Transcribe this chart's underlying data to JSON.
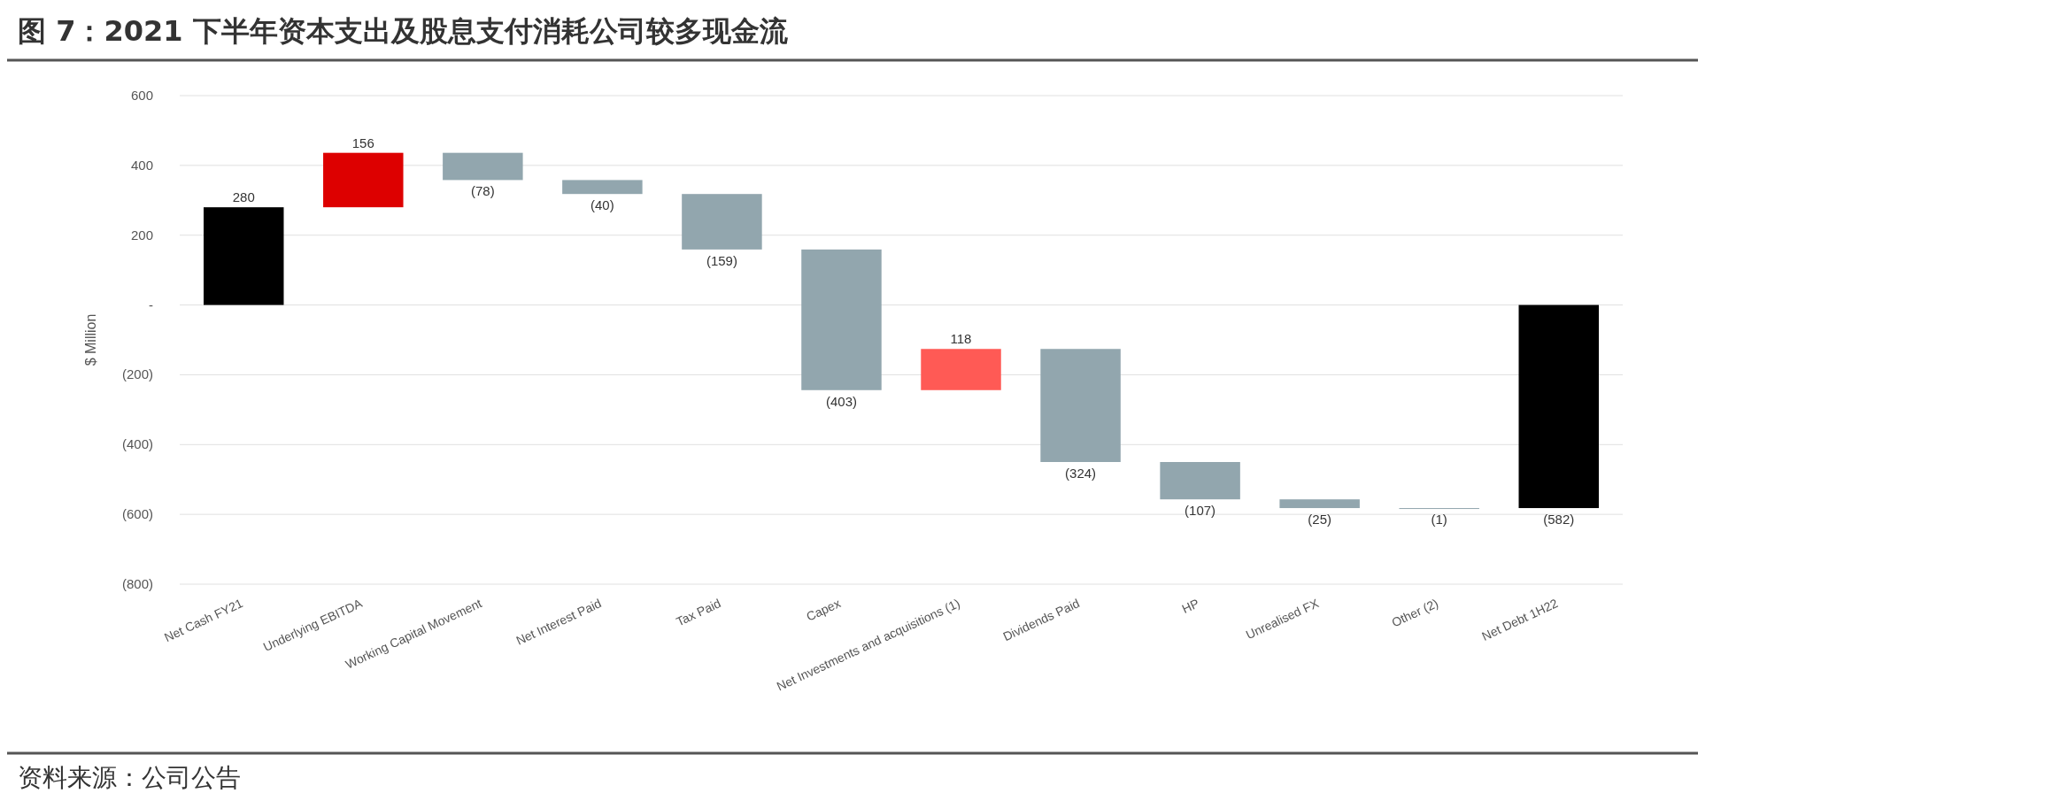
{
  "chart_data": {
    "type": "bar",
    "title": "图 7：2021 下半年资本支出及股息支付消耗公司较多现金流",
    "ylabel": "$ Million",
    "annotations": [
      "资料来源：公司公告"
    ],
    "categories": [
      "Net Cash FY21",
      "Underlying EBITDA",
      "Working Capital Movement",
      "Net Interest Paid",
      "Tax Paid",
      "Capex",
      "Net Investments and acquisitions (1)",
      "Dividends Paid",
      "HP",
      "Unrealised FX",
      "Other (2)",
      "Net Debt 1H22"
    ],
    "base": [
      0,
      280,
      436,
      358,
      318,
      159,
      -244,
      -126,
      -450,
      -557,
      -582,
      0
    ],
    "values": [
      280,
      156,
      -78,
      -40,
      -159,
      -403,
      118,
      -324,
      -107,
      -25,
      -1,
      -582
    ],
    "value_labels": [
      "280",
      "156",
      "(78)",
      "(40)",
      "(159)",
      "(403)",
      "118",
      "(324)",
      "(107)",
      "(25)",
      "(1)",
      "(582)"
    ],
    "colors": [
      "#000000",
      "#dd0000",
      "#92a6ae",
      "#92a6ae",
      "#92a6ae",
      "#92a6ae",
      "#ff5a55",
      "#92a6ae",
      "#92a6ae",
      "#92a6ae",
      "#92a6ae",
      "#000000"
    ],
    "ylim": [
      -800,
      600
    ],
    "yticks": [
      {
        "value": -800,
        "label": "(800)"
      },
      {
        "value": -600,
        "label": "(600)"
      },
      {
        "value": -400,
        "label": "(400)"
      },
      {
        "value": -200,
        "label": "(200)"
      },
      {
        "value": 0,
        "label": "-"
      },
      200,
      400,
      600
    ],
    "grid": "y"
  }
}
